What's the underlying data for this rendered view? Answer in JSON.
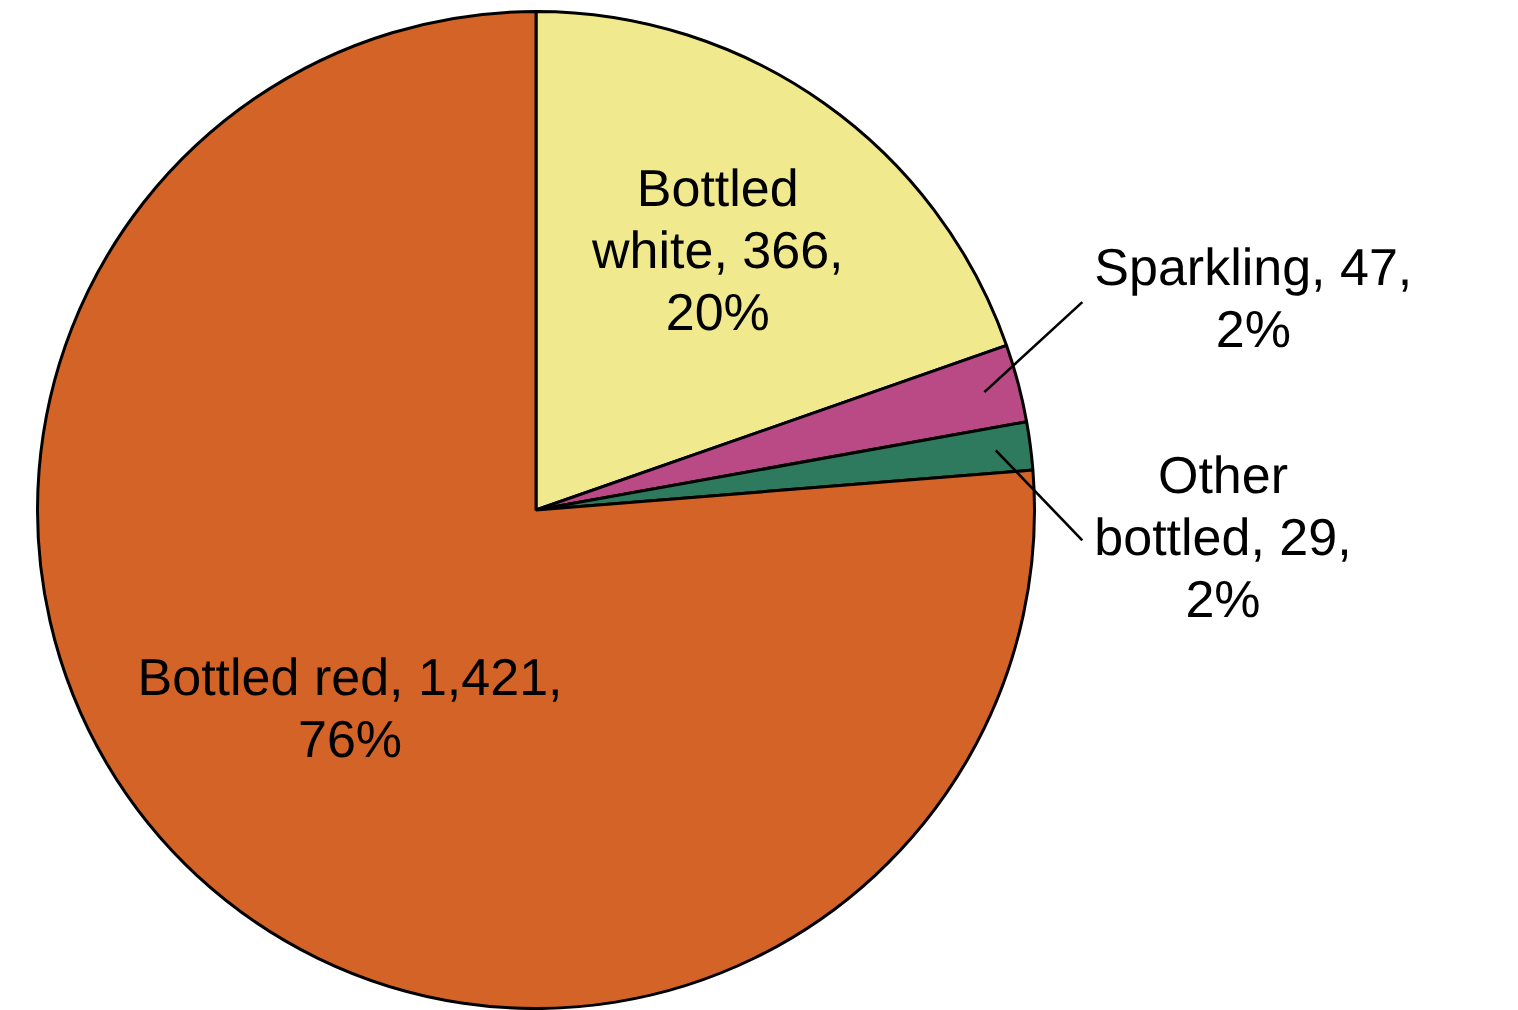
{
  "chart_data": {
    "type": "pie",
    "categories": [
      "Bottled white",
      "Sparkling",
      "Other bottled",
      "Bottled red"
    ],
    "values": [
      366,
      47,
      29,
      1421
    ],
    "colors": [
      "#f0e98e",
      "#b94a86",
      "#2e7a5e",
      "#d46328"
    ],
    "value_labels": [
      ", 366, 20%",
      ", 47, 2%",
      ", 29, 2%",
      ", 1,421, 76%"
    ],
    "legend": false
  }
}
